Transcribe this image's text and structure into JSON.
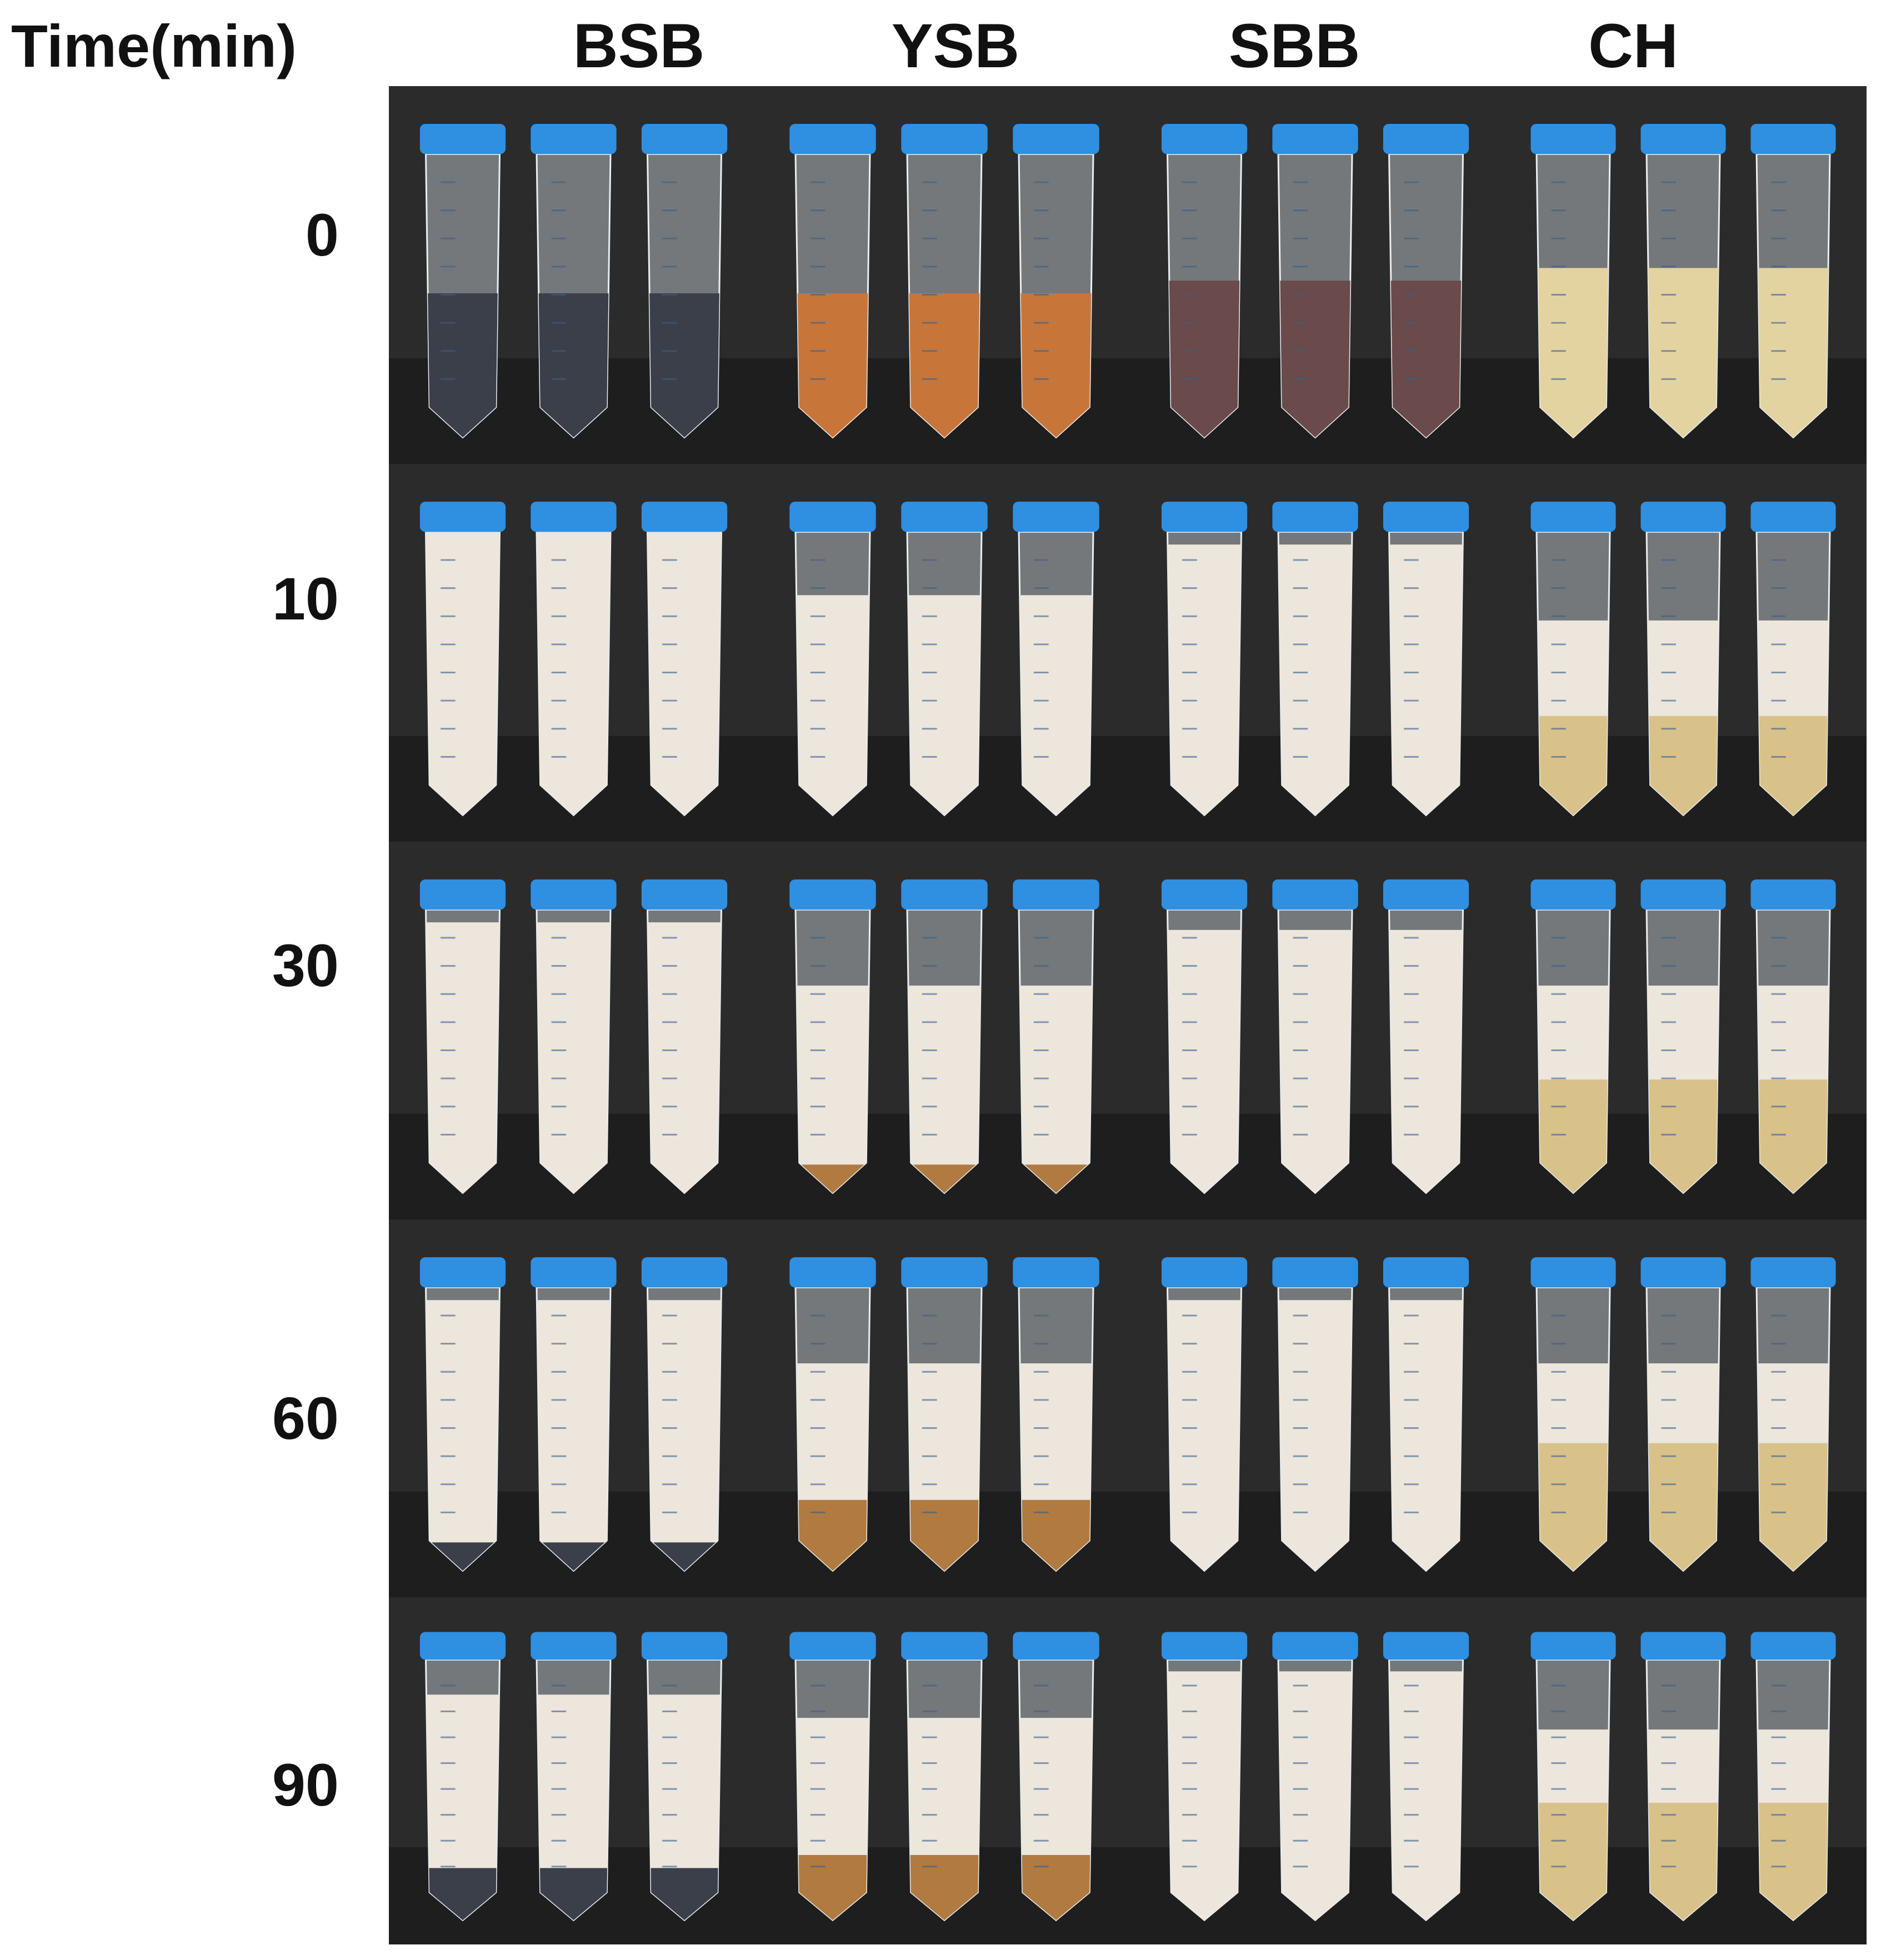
{
  "figure": {
    "time_header": "Time(min)",
    "columns": [
      "BSB",
      "YSB",
      "SBB",
      "CH"
    ],
    "rows": [
      "0",
      "10",
      "30",
      "60",
      "90"
    ]
  },
  "colors": {
    "cap_blue": "#2f8fe0",
    "background_dark": "#2b2b2b",
    "BSB_0": "#3a3f4a",
    "YSB_0": "#c8753a",
    "SBB_0": "#6a4a4a",
    "CH_0": "#e2d3a0",
    "foam_white": "#ece6dc",
    "clear_tan": "#d8c28a",
    "brown_sediment": "#b07a40"
  }
}
